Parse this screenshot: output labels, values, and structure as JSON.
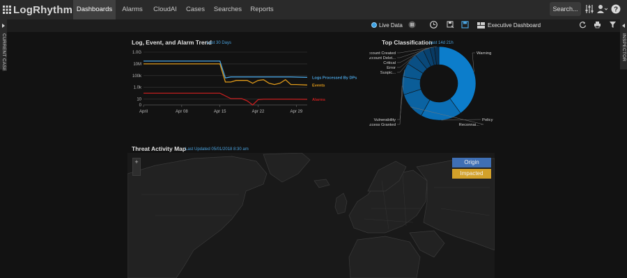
{
  "app": {
    "logo_text": "LogRhythm"
  },
  "nav": {
    "tabs": [
      {
        "label": "Dashboards",
        "active": true
      },
      {
        "label": "Alarms",
        "active": false
      },
      {
        "label": "CloudAI",
        "active": false
      },
      {
        "label": "Cases",
        "active": false
      },
      {
        "label": "Searches",
        "active": false
      },
      {
        "label": "Reports",
        "active": false
      }
    ],
    "search_label": "Search...",
    "icons": [
      "settings-sliders-icon",
      "user-icon",
      "help-icon"
    ]
  },
  "toolbar": {
    "live_data_label": "Live Data",
    "dashboard_name": "Executive Dashboard",
    "icons": [
      "pause-icon",
      "clock-icon",
      "save-as-icon",
      "save-icon",
      "layout-icon",
      "reset-icon",
      "print-icon",
      "filter-icon"
    ]
  },
  "sidebars": {
    "left_label": "CURRENT CASE",
    "right_label": "INSPECTOR"
  },
  "trend": {
    "title": "Log, Event, and Alarm Trend",
    "subtitle": "Last 30 Days",
    "chart_data": {
      "type": "line",
      "title": "Log, Event, and Alarm Trend",
      "y_scale": "log",
      "y_ticks": [
        "1.0G",
        "10M",
        "100k",
        "1.0k",
        "10",
        "0"
      ],
      "y_tick_values": [
        1000000000,
        10000000,
        100000,
        1000,
        10,
        1
      ],
      "x_ticks": [
        "April",
        "Apr 08",
        "Apr 15",
        "Apr 22",
        "Apr 29"
      ],
      "x_tick_days": [
        1,
        8,
        15,
        22,
        29
      ],
      "x_range_days": [
        1,
        31
      ],
      "series": [
        {
          "name": "Logs Processed By DPs",
          "color": "#49a3e0",
          "x": [
            1,
            2,
            15,
            16,
            17,
            18,
            20,
            22,
            24,
            26,
            28,
            31
          ],
          "y": [
            30000000,
            30000000,
            30000000,
            40000,
            60000,
            60000,
            60000,
            60000,
            60000,
            60000,
            60000,
            50000
          ]
        },
        {
          "name": "Events",
          "color": "#e09a1a",
          "x": [
            1,
            2,
            15,
            16,
            17,
            18,
            20,
            21,
            22,
            23,
            24,
            25,
            26,
            27,
            28,
            29,
            31
          ],
          "y": [
            10000000,
            10000000,
            10000000,
            8000,
            8000,
            15000,
            15000,
            5000,
            15000,
            20000,
            5000,
            3000,
            5000,
            20000,
            3000,
            3000,
            2500
          ]
        },
        {
          "name": "Alarms",
          "color": "#c81e1e",
          "x": [
            1,
            2,
            15,
            17,
            19,
            20,
            21,
            22,
            23,
            24,
            28,
            31
          ],
          "y": [
            100,
            100,
            100,
            12,
            12,
            5,
            1,
            8,
            10,
            10,
            10,
            9
          ]
        }
      ]
    }
  },
  "classification": {
    "title": "Top Classification",
    "subtitle": "Last 14d 21h",
    "chart_data": {
      "type": "pie",
      "title": "Top Classification",
      "categories": [
        "Warning",
        "Policy",
        "Reconnai...",
        "Access Granted",
        "Vulnerability",
        "Suspic...",
        "Error",
        "Critical",
        "Account Delet...",
        "Account Created"
      ],
      "values": [
        40,
        18,
        12,
        8,
        6,
        5,
        4,
        3,
        2,
        2
      ],
      "colors": [
        "#0c7dcb",
        "#0b6fb6",
        "#0b63a2",
        "#0b5d98",
        "#0a578f",
        "#0a4f84",
        "#094879",
        "#09416e",
        "#083a63",
        "#083459"
      ]
    }
  },
  "map": {
    "title": "Threat Activity Map",
    "subtitle": "Last Updated 05/01/2018 8:30 am",
    "zoom_label": "+",
    "legend": [
      {
        "label": "Origin",
        "color": "#3f6fb4"
      },
      {
        "label": "Impacted",
        "color": "#d3a12a"
      }
    ]
  }
}
